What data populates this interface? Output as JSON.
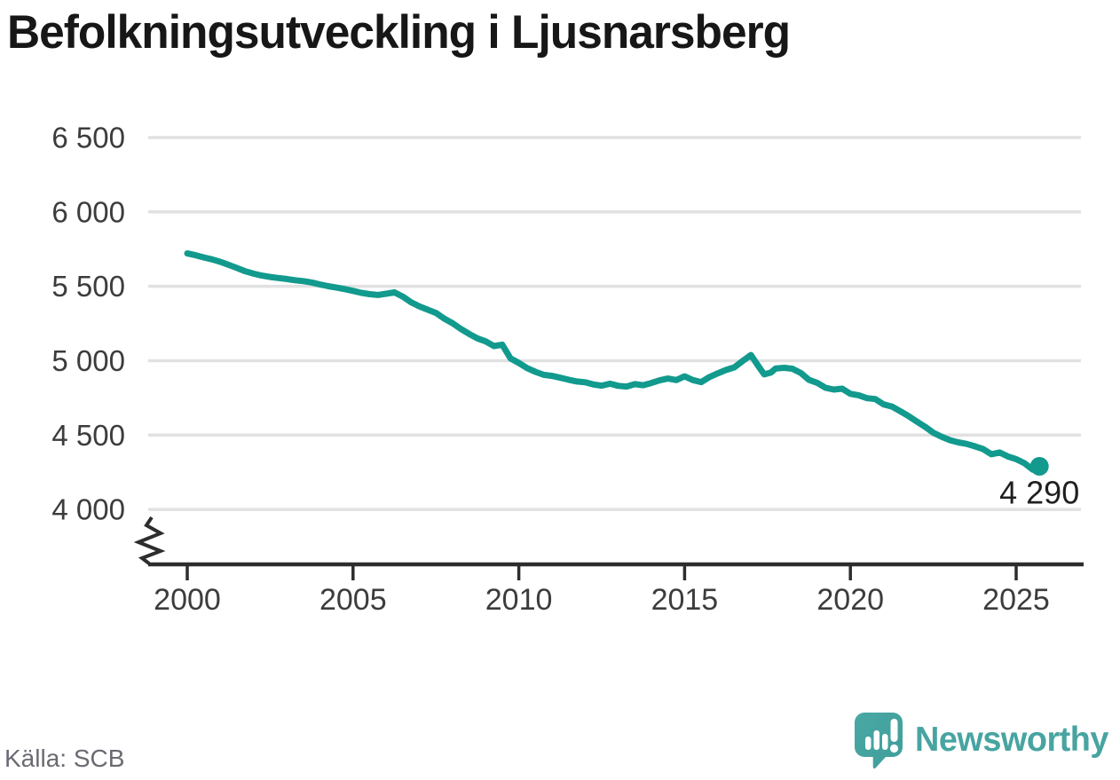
{
  "title": "Befolkningsutveckling i Ljusnarsberg",
  "footer": {
    "source": "Källa: SCB",
    "brand_name": "Newsworthy"
  },
  "colors": {
    "line": "#119a8d",
    "end_dot": "#119a8d",
    "grid": "#e1e1e1",
    "axis": "#2d2d2d",
    "tick_text": "#3c3c3f",
    "end_label_text": "#1f1f1f",
    "title_text": "#171717",
    "source_text": "#6a6a73",
    "brand": "#47a4a1"
  },
  "chart_data": {
    "type": "line",
    "title": "Befolkningsutveckling i Ljusnarsberg",
    "xlabel": "",
    "ylabel": "",
    "grid": "horizontal",
    "legend": "none",
    "x": {
      "tick_values": [
        2000,
        2005,
        2010,
        2015,
        2020,
        2025
      ],
      "tick_labels": [
        "2000",
        "2005",
        "2010",
        "2015",
        "2020",
        "2025"
      ],
      "range": [
        1998.8,
        2027.0
      ]
    },
    "y": {
      "tick_values": [
        6500,
        6000,
        5500,
        5000,
        4500,
        4000
      ],
      "tick_labels": [
        "6 500",
        "6 000",
        "5 500",
        "5 000",
        "4 500",
        "4 000"
      ],
      "range": [
        4000,
        6500
      ],
      "axis_break": true
    },
    "end_point_label": "4 290",
    "end_point": [
      2025.7,
      4290
    ],
    "series": [
      {
        "name": "befolkning",
        "color": "#119a8d",
        "points": [
          [
            2000.0,
            5721
          ],
          [
            2000.25,
            5709
          ],
          [
            2000.5,
            5694
          ],
          [
            2000.75,
            5681
          ],
          [
            2001.0,
            5664
          ],
          [
            2001.25,
            5644
          ],
          [
            2001.5,
            5623
          ],
          [
            2001.75,
            5601
          ],
          [
            2002.0,
            5585
          ],
          [
            2002.25,
            5572
          ],
          [
            2002.5,
            5563
          ],
          [
            2002.75,
            5556
          ],
          [
            2003.0,
            5549
          ],
          [
            2003.25,
            5541
          ],
          [
            2003.5,
            5535
          ],
          [
            2003.75,
            5526
          ],
          [
            2004.0,
            5513
          ],
          [
            2004.25,
            5501
          ],
          [
            2004.5,
            5491
          ],
          [
            2004.75,
            5481
          ],
          [
            2005.0,
            5469
          ],
          [
            2005.25,
            5456
          ],
          [
            2005.5,
            5447
          ],
          [
            2005.75,
            5442
          ],
          [
            2006.0,
            5450
          ],
          [
            2006.25,
            5459
          ],
          [
            2006.5,
            5431
          ],
          [
            2006.75,
            5393
          ],
          [
            2007.0,
            5365
          ],
          [
            2007.25,
            5343
          ],
          [
            2007.5,
            5321
          ],
          [
            2007.75,
            5283
          ],
          [
            2008.0,
            5252
          ],
          [
            2008.25,
            5214
          ],
          [
            2008.5,
            5180
          ],
          [
            2008.75,
            5150
          ],
          [
            2009.0,
            5130
          ],
          [
            2009.25,
            5098
          ],
          [
            2009.5,
            5108
          ],
          [
            2009.75,
            5015
          ],
          [
            2010.0,
            4985
          ],
          [
            2010.25,
            4950
          ],
          [
            2010.5,
            4925
          ],
          [
            2010.75,
            4905
          ],
          [
            2011.0,
            4898
          ],
          [
            2011.25,
            4885
          ],
          [
            2011.5,
            4872
          ],
          [
            2011.75,
            4860
          ],
          [
            2012.0,
            4855
          ],
          [
            2012.25,
            4840
          ],
          [
            2012.5,
            4832
          ],
          [
            2012.75,
            4845
          ],
          [
            2013.0,
            4831
          ],
          [
            2013.25,
            4826
          ],
          [
            2013.5,
            4842
          ],
          [
            2013.75,
            4835
          ],
          [
            2014.0,
            4850
          ],
          [
            2014.25,
            4868
          ],
          [
            2014.5,
            4880
          ],
          [
            2014.75,
            4870
          ],
          [
            2015.0,
            4895
          ],
          [
            2015.25,
            4870
          ],
          [
            2015.5,
            4856
          ],
          [
            2015.75,
            4890
          ],
          [
            2016.0,
            4915
          ],
          [
            2016.25,
            4938
          ],
          [
            2016.5,
            4955
          ],
          [
            2016.75,
            4998
          ],
          [
            2017.0,
            5038
          ],
          [
            2017.25,
            4955
          ],
          [
            2017.4,
            4908
          ],
          [
            2017.6,
            4920
          ],
          [
            2017.75,
            4948
          ],
          [
            2018.0,
            4952
          ],
          [
            2018.25,
            4946
          ],
          [
            2018.5,
            4918
          ],
          [
            2018.75,
            4871
          ],
          [
            2019.0,
            4851
          ],
          [
            2019.25,
            4818
          ],
          [
            2019.5,
            4806
          ],
          [
            2019.75,
            4812
          ],
          [
            2020.0,
            4777
          ],
          [
            2020.25,
            4768
          ],
          [
            2020.5,
            4748
          ],
          [
            2020.75,
            4742
          ],
          [
            2021.0,
            4706
          ],
          [
            2021.25,
            4692
          ],
          [
            2021.5,
            4661
          ],
          [
            2021.75,
            4628
          ],
          [
            2022.0,
            4592
          ],
          [
            2022.25,
            4556
          ],
          [
            2022.5,
            4516
          ],
          [
            2022.75,
            4489
          ],
          [
            2023.0,
            4466
          ],
          [
            2023.25,
            4451
          ],
          [
            2023.5,
            4441
          ],
          [
            2023.75,
            4425
          ],
          [
            2024.0,
            4406
          ],
          [
            2024.25,
            4371
          ],
          [
            2024.5,
            4383
          ],
          [
            2024.75,
            4356
          ],
          [
            2025.0,
            4338
          ],
          [
            2025.25,
            4311
          ],
          [
            2025.5,
            4268
          ],
          [
            2025.7,
            4290
          ]
        ]
      }
    ]
  }
}
